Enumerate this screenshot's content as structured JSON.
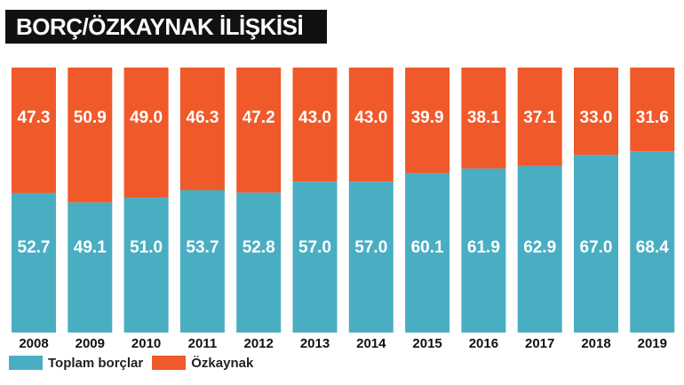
{
  "title": "BORÇ/ÖZKAYNAK İLİŞKİSİ",
  "chart_data": {
    "type": "bar",
    "stacked": true,
    "categories": [
      "2008",
      "2009",
      "2010",
      "2011",
      "2012",
      "2013",
      "2014",
      "2015",
      "2016",
      "2017",
      "2018",
      "2019"
    ],
    "series": [
      {
        "name": "Toplam borçlar",
        "color": "#4aaec3",
        "values": [
          52.7,
          49.1,
          51.0,
          53.7,
          52.8,
          57.0,
          57.0,
          60.1,
          61.9,
          62.9,
          67.0,
          68.4
        ]
      },
      {
        "name": "Özkaynak",
        "color": "#f0592a",
        "values": [
          47.3,
          50.9,
          49.0,
          46.3,
          47.2,
          43.0,
          43.0,
          39.9,
          38.1,
          37.1,
          33.0,
          31.6
        ]
      }
    ],
    "ylim": [
      0,
      100
    ],
    "xlabel": "",
    "ylabel": "",
    "legend_position": "bottom-left",
    "grid": false
  }
}
